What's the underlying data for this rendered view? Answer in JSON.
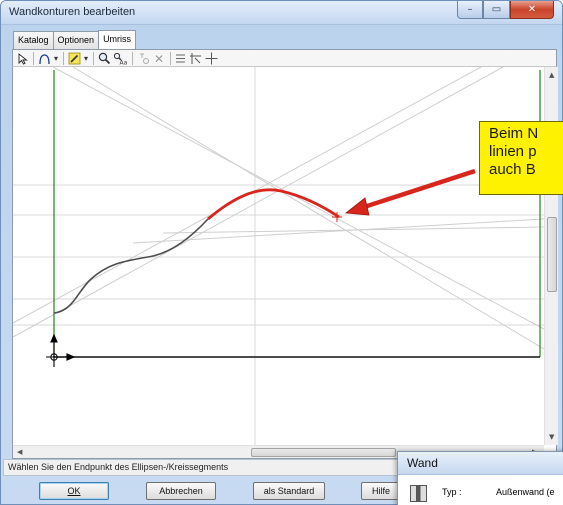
{
  "window": {
    "title": "Wandkonturen bearbeiten",
    "controls": {
      "minimize": "–",
      "maximize": "▭",
      "close": "✕"
    }
  },
  "tabs": [
    {
      "label": "Katalog"
    },
    {
      "label": "Optionen"
    },
    {
      "label": "Umriss",
      "active": true
    }
  ],
  "toolbar": {
    "icons": [
      "select-arrow-icon",
      "arc-tool-icon",
      "pen-tool-icon",
      "zoom-icon",
      "measure-icon",
      "delete-point-icon",
      "delete-icon",
      "grid-icon",
      "snap-icon",
      "crosshair-icon"
    ]
  },
  "callout": {
    "lines": [
      "Beim N",
      "linien p",
      "auch B"
    ],
    "background": "#fff200"
  },
  "status": {
    "text": "Wählen Sie den Endpunkt des Ellipsen-/Kreissegments"
  },
  "buttons": {
    "ok": "OK",
    "cancel": "Abbrechen",
    "default": "als Standard",
    "help": "Hilfe"
  },
  "wand_panel": {
    "title": "Wand",
    "type_label": "Typ :",
    "type_value": "Außenwand (e"
  },
  "colors": {
    "accent_curve": "#d9261c",
    "arrow": "#d9261c",
    "wall_line": "#2f8f2f"
  }
}
